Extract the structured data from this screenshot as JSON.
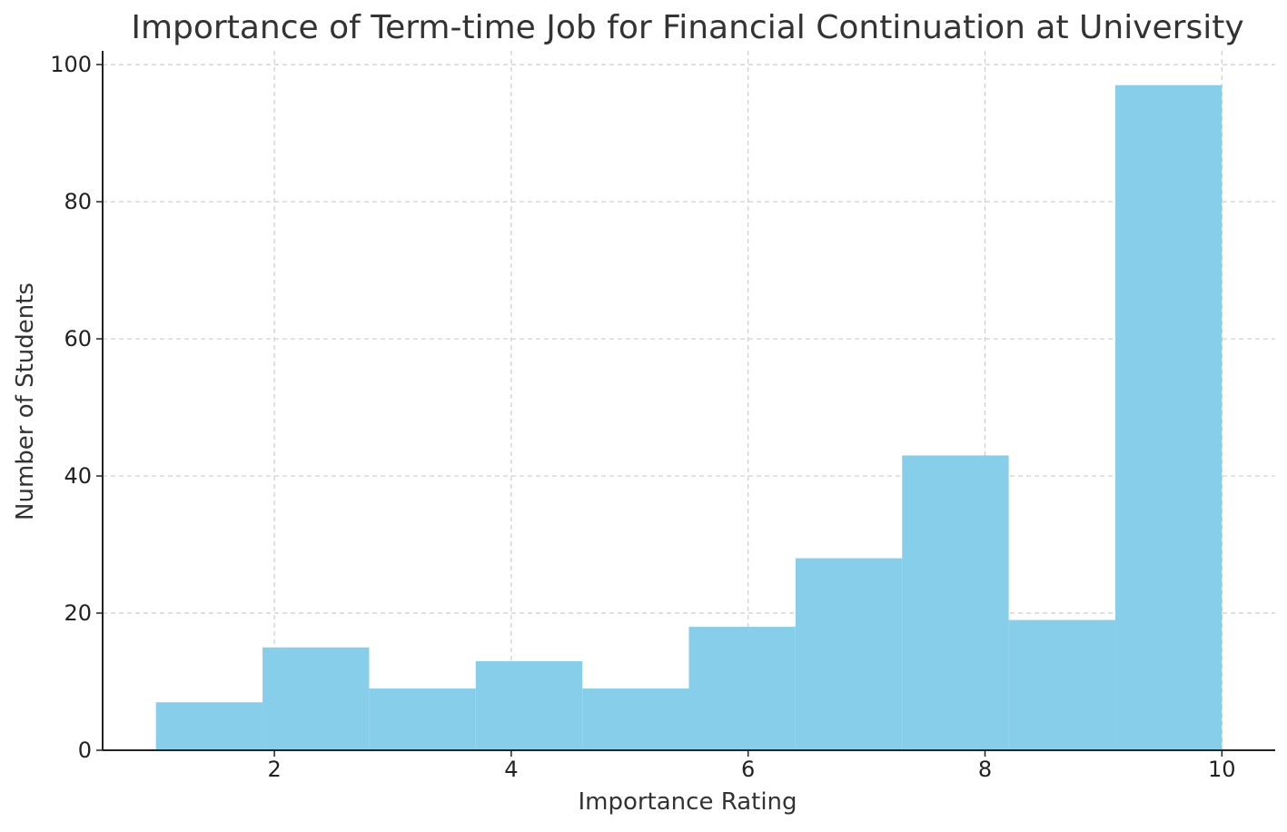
{
  "chart_data": {
    "type": "bar",
    "title": "Importance of Term-time Job for Financial Continuation at University",
    "xlabel": "Importance Rating",
    "ylabel": "Number of Students",
    "bins": [
      {
        "start": 1.0,
        "end": 1.9,
        "count": 7
      },
      {
        "start": 1.9,
        "end": 2.8,
        "count": 15
      },
      {
        "start": 2.8,
        "end": 3.7,
        "count": 9
      },
      {
        "start": 3.7,
        "end": 4.6,
        "count": 13
      },
      {
        "start": 4.6,
        "end": 5.5,
        "count": 9
      },
      {
        "start": 5.5,
        "end": 6.4,
        "count": 18
      },
      {
        "start": 6.4,
        "end": 7.3,
        "count": 28
      },
      {
        "start": 7.3,
        "end": 8.2,
        "count": 43
      },
      {
        "start": 8.2,
        "end": 9.1,
        "count": 19
      },
      {
        "start": 9.1,
        "end": 10.0,
        "count": 97
      }
    ],
    "xticks": [
      2,
      4,
      6,
      8,
      10
    ],
    "yticks": [
      0,
      20,
      40,
      60,
      80,
      100
    ],
    "xlim": [
      0.55,
      10.45
    ],
    "ylim": [
      0,
      102
    ],
    "grid": true,
    "bar_color": "#87CEEB"
  }
}
